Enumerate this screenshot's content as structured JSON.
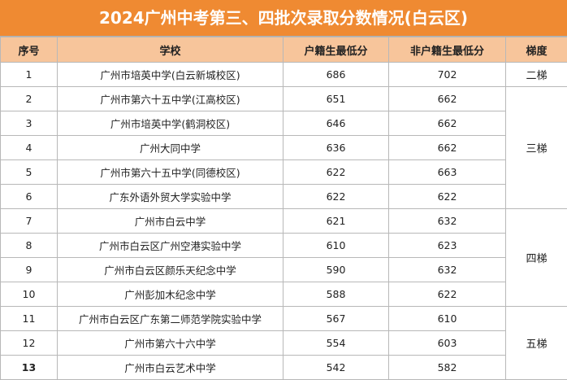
{
  "title": "2024广州中考第三、四批次录取分数情况(白云区)",
  "headers": [
    "序号",
    "学校",
    "户籍生最低分",
    "非户籍生最低分",
    "梯度"
  ],
  "rows": [
    {
      "no": "1",
      "school": "广州市培英中学(白云新城校区)",
      "hk": "686",
      "nonhk": "702"
    },
    {
      "no": "2",
      "school": "广州市第六十五中学(江高校区)",
      "hk": "651",
      "nonhk": "662"
    },
    {
      "no": "3",
      "school": "广州市培英中学(鹤洞校区)",
      "hk": "646",
      "nonhk": "662"
    },
    {
      "no": "4",
      "school": "广州大同中学",
      "hk": "636",
      "nonhk": "662"
    },
    {
      "no": "5",
      "school": "广州市第六十五中学(同德校区)",
      "hk": "622",
      "nonhk": "663"
    },
    {
      "no": "6",
      "school": "广东外语外贸大学实验中学",
      "hk": "622",
      "nonhk": "622"
    },
    {
      "no": "7",
      "school": "广州市白云中学",
      "hk": "621",
      "nonhk": "632"
    },
    {
      "no": "8",
      "school": "广州市白云区广州空港实验中学",
      "hk": "610",
      "nonhk": "623"
    },
    {
      "no": "9",
      "school": "广州市白云区颜乐天纪念中学",
      "hk": "590",
      "nonhk": "632"
    },
    {
      "no": "10",
      "school": "广州彭加木纪念中学",
      "hk": "588",
      "nonhk": "622"
    },
    {
      "no": "11",
      "school": "广州市白云区广东第二师范学院实验中学",
      "hk": "567",
      "nonhk": "610"
    },
    {
      "no": "12",
      "school": "广州市第六十六中学",
      "hk": "554",
      "nonhk": "603"
    },
    {
      "no": "13",
      "school": "广州市白云艺术中学",
      "hk": "542",
      "nonhk": "582"
    }
  ],
  "tiers": [
    "二梯",
    "三梯",
    "四梯",
    "五梯"
  ],
  "colors": {
    "title_bg": "#ef8a32",
    "header_bg": "#f7c59b"
  }
}
